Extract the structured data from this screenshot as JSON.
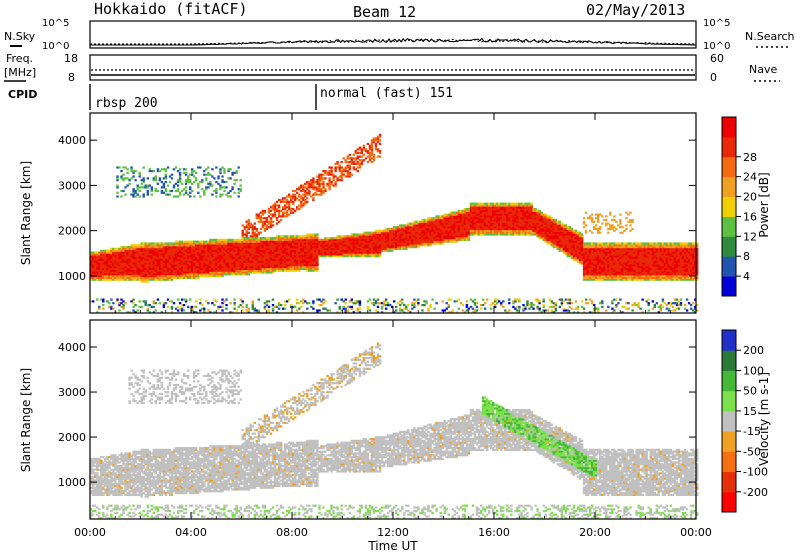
{
  "header": {
    "station": "Hokkaido (fitACF)",
    "beam": "Beam 12",
    "date": "02/May/2013"
  },
  "noise_panel": {
    "left_label": "N.Sky",
    "right_label": "N.Search",
    "left_ticks": [
      "10^5",
      "10^0"
    ],
    "right_ticks": [
      "10^5",
      "10^0"
    ]
  },
  "freq_panel": {
    "left_label_line1": "Freq.",
    "left_label_line2": "[MHz]",
    "right_label": "Nave",
    "left_ticks": [
      "18",
      "8"
    ],
    "right_ticks": [
      "60",
      "0"
    ]
  },
  "cpid": {
    "label": "CPID",
    "segments": [
      {
        "label": "rbsp 200",
        "start_hour": 0
      },
      {
        "label": "normal (fast) 151",
        "start_hour": 9.0
      }
    ]
  },
  "chart_data": [
    {
      "type": "heatmap",
      "panel": "power",
      "ylabel": "Slant Range [km]",
      "ylim": [
        180,
        4600
      ],
      "y_ticks": [
        1000,
        2000,
        3000,
        4000
      ],
      "xlim_hours": [
        0,
        24
      ],
      "colorbar": {
        "label": "Power [dB]",
        "ticks": [
          "4",
          "8",
          "12",
          "16",
          "20",
          "24",
          "28"
        ],
        "colors": [
          "#0000d8",
          "#2255b0",
          "#2e8a3c",
          "#5cc040",
          "#f0d000",
          "#f0a020",
          "#f56a10",
          "#e82808",
          "#ee0000"
        ]
      },
      "features": [
        {
          "name": "main band",
          "hours": [
            0,
            24
          ],
          "range_km": [
            800,
            1900
          ],
          "level": "high"
        },
        {
          "name": "rising arc",
          "hours": [
            6,
            12
          ],
          "range_km": [
            1600,
            3900
          ],
          "level": "high"
        },
        {
          "name": "ridge",
          "hours": [
            12,
            19
          ],
          "range_km": [
            1900,
            2800
          ],
          "level": "high"
        },
        {
          "name": "descending arc",
          "hours": [
            18,
            24
          ],
          "range_km": [
            1200,
            2200
          ],
          "level": "high"
        }
      ]
    },
    {
      "type": "heatmap",
      "panel": "velocity",
      "ylabel": "Slant Range [km]",
      "ylim": [
        180,
        4600
      ],
      "y_ticks": [
        1000,
        2000,
        3000,
        4000
      ],
      "xlim_hours": [
        0,
        24
      ],
      "colorbar": {
        "label": "Velocity [m s-1]",
        "ticks": [
          "200",
          "100",
          "50",
          "15",
          "-15",
          "-50",
          "-100",
          "-200"
        ],
        "colors": [
          "#2030c8",
          "#2c7a3a",
          "#46b838",
          "#7ce04a",
          "#c0c0c0",
          "#f0a020",
          "#f57010",
          "#e83008",
          "#ff0000"
        ]
      },
      "features": [
        {
          "name": "ground scatter band",
          "hours": [
            0,
            24
          ],
          "range_km": [
            700,
            1700
          ],
          "velocity": "-15 to 15"
        },
        {
          "name": "positive velocity streak",
          "hours": [
            15.5,
            20
          ],
          "range_km": [
            1300,
            2700
          ],
          "velocity": "15 to 50"
        }
      ]
    }
  ],
  "x_axis": {
    "label": "Time UT",
    "ticks": [
      "00:00",
      "04:00",
      "08:00",
      "12:00",
      "16:00",
      "20:00",
      "00:00"
    ]
  }
}
